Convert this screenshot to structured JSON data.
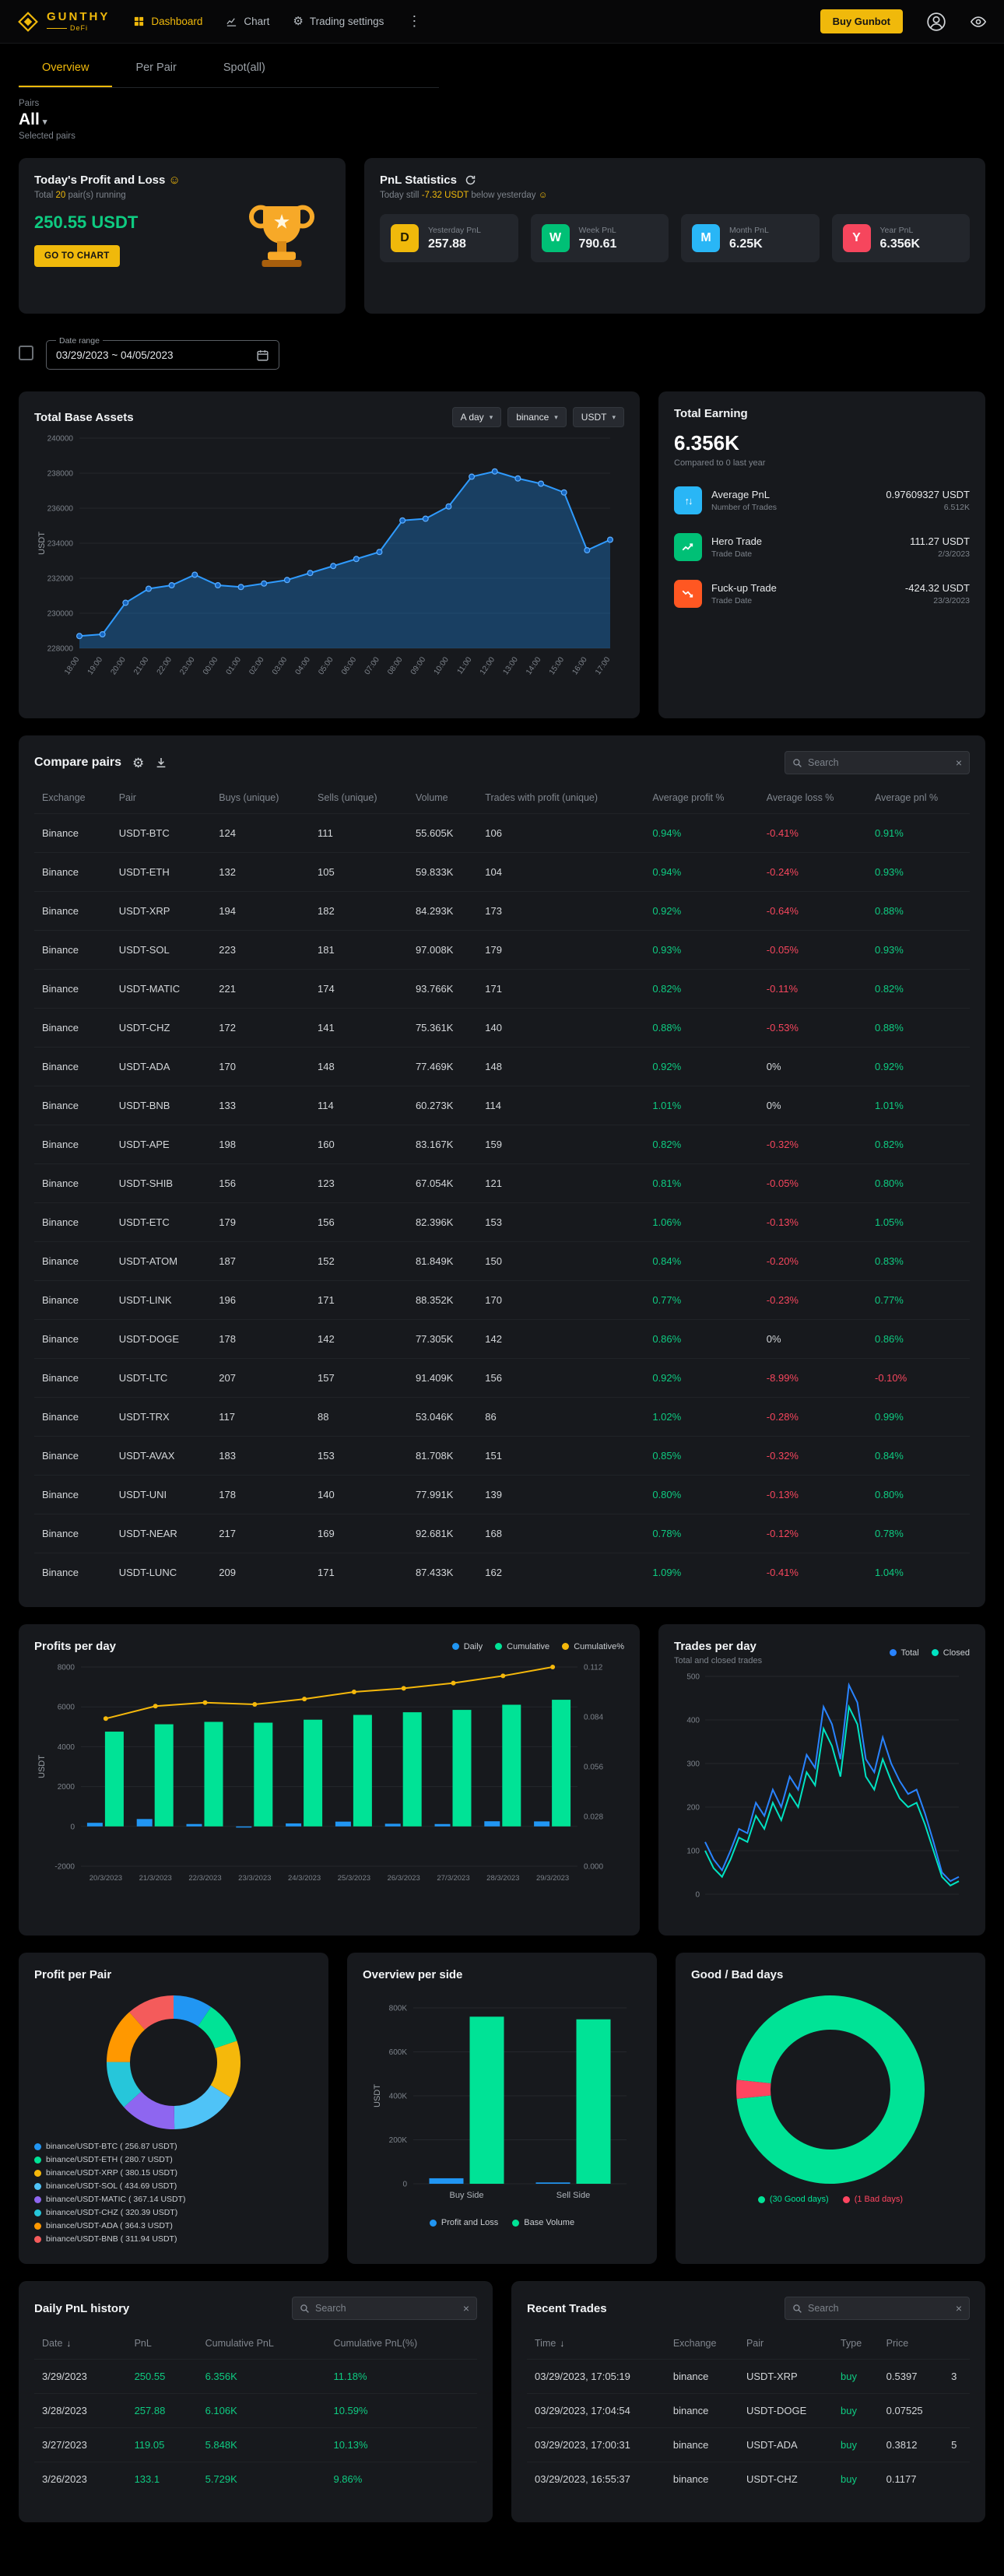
{
  "colors": {
    "accent_gold": "#f0b90b",
    "positive_green": "#0ecb81",
    "negative_red": "#f6465d",
    "chart_blue": "#2196f3"
  },
  "navbar": {
    "brand": "GUNTHY",
    "brand_sub": "DeFi",
    "items": [
      "Dashboard",
      "Chart",
      "Trading settings"
    ],
    "buy_button": "Buy Gunbot"
  },
  "tabs": [
    "Overview",
    "Per Pair",
    "Spot(all)"
  ],
  "pairs_filter": {
    "label": "Pairs",
    "value": "All",
    "sub": "Selected pairs"
  },
  "today_card": {
    "title": "Today's Profit and Loss",
    "title_emoji": "☺",
    "subtitle_prefix": "Total ",
    "subtitle_count": "20",
    "subtitle_suffix": " pair(s) running",
    "amount": "250.55 USDT",
    "button": "GO TO CHART"
  },
  "pnl_stats": {
    "title": "PnL Statistics",
    "subtitle_pre": "Today still ",
    "subtitle_value": "-7.32 USDT",
    "subtitle_post": " below yesterday",
    "subtitle_emoji": "☺",
    "stats": [
      {
        "letter": "D",
        "label": "Yesterday PnL",
        "value": "257.88",
        "color": "#f0b90b"
      },
      {
        "letter": "W",
        "label": "Week PnL",
        "value": "790.61",
        "color": "#00c076"
      },
      {
        "letter": "M",
        "label": "Month PnL",
        "value": "6.25K",
        "color": "#29b6f6"
      },
      {
        "letter": "Y",
        "label": "Year PnL",
        "value": "6.356K",
        "color": "#f6465d"
      }
    ]
  },
  "date_range": {
    "label": "Date range",
    "value": "03/29/2023 ~ 04/05/2023"
  },
  "base_assets": {
    "title": "Total Base Assets",
    "selects": [
      "A day",
      "binance",
      "USDT"
    ]
  },
  "total_earning": {
    "title": "Total Earning",
    "value": "6.356K",
    "compare": "Compared to 0 last year",
    "rows": [
      {
        "label": "Average PnL",
        "sub": "Number of Trades",
        "value": "0.97609327 USDT",
        "sub_value": "6.512K",
        "icon": "swap-icon",
        "color": "#29b6f6"
      },
      {
        "label": "Hero Trade",
        "sub": "Trade Date",
        "value": "111.27 USDT",
        "sub_value": "2/3/2023",
        "icon": "trend-up-icon",
        "color": "#00c076"
      },
      {
        "label": "Fuck-up Trade",
        "sub": "Trade Date",
        "value": "-424.32 USDT",
        "sub_value": "23/3/2023",
        "icon": "trend-down-icon",
        "color": "#ff5722"
      }
    ]
  },
  "compare_pairs": {
    "title": "Compare pairs",
    "search_placeholder": "Search",
    "headers": [
      "Exchange",
      "Pair",
      "Buys (unique)",
      "Sells (unique)",
      "Volume",
      "Trades with profit (unique)",
      "Average profit %",
      "Average loss %",
      "Average pnl %"
    ],
    "rows": [
      [
        "Binance",
        "USDT-BTC",
        "124",
        "111",
        "55.605K",
        "106",
        "0.94%",
        "-0.41%",
        "0.91%"
      ],
      [
        "Binance",
        "USDT-ETH",
        "132",
        "105",
        "59.833K",
        "104",
        "0.94%",
        "-0.24%",
        "0.93%"
      ],
      [
        "Binance",
        "USDT-XRP",
        "194",
        "182",
        "84.293K",
        "173",
        "0.92%",
        "-0.64%",
        "0.88%"
      ],
      [
        "Binance",
        "USDT-SOL",
        "223",
        "181",
        "97.008K",
        "179",
        "0.93%",
        "-0.05%",
        "0.93%"
      ],
      [
        "Binance",
        "USDT-MATIC",
        "221",
        "174",
        "93.766K",
        "171",
        "0.82%",
        "-0.11%",
        "0.82%"
      ],
      [
        "Binance",
        "USDT-CHZ",
        "172",
        "141",
        "75.361K",
        "140",
        "0.88%",
        "-0.53%",
        "0.88%"
      ],
      [
        "Binance",
        "USDT-ADA",
        "170",
        "148",
        "77.469K",
        "148",
        "0.92%",
        "0%",
        "0.92%"
      ],
      [
        "Binance",
        "USDT-BNB",
        "133",
        "114",
        "60.273K",
        "114",
        "1.01%",
        "0%",
        "1.01%"
      ],
      [
        "Binance",
        "USDT-APE",
        "198",
        "160",
        "83.167K",
        "159",
        "0.82%",
        "-0.32%",
        "0.82%"
      ],
      [
        "Binance",
        "USDT-SHIB",
        "156",
        "123",
        "67.054K",
        "121",
        "0.81%",
        "-0.05%",
        "0.80%"
      ],
      [
        "Binance",
        "USDT-ETC",
        "179",
        "156",
        "82.396K",
        "153",
        "1.06%",
        "-0.13%",
        "1.05%"
      ],
      [
        "Binance",
        "USDT-ATOM",
        "187",
        "152",
        "81.849K",
        "150",
        "0.84%",
        "-0.20%",
        "0.83%"
      ],
      [
        "Binance",
        "USDT-LINK",
        "196",
        "171",
        "88.352K",
        "170",
        "0.77%",
        "-0.23%",
        "0.77%"
      ],
      [
        "Binance",
        "USDT-DOGE",
        "178",
        "142",
        "77.305K",
        "142",
        "0.86%",
        "0%",
        "0.86%"
      ],
      [
        "Binance",
        "USDT-LTC",
        "207",
        "157",
        "91.409K",
        "156",
        "0.92%",
        "-8.99%",
        "-0.10%"
      ],
      [
        "Binance",
        "USDT-TRX",
        "117",
        "88",
        "53.046K",
        "86",
        "1.02%",
        "-0.28%",
        "0.99%"
      ],
      [
        "Binance",
        "USDT-AVAX",
        "183",
        "153",
        "81.708K",
        "151",
        "0.85%",
        "-0.32%",
        "0.84%"
      ],
      [
        "Binance",
        "USDT-UNI",
        "178",
        "140",
        "77.991K",
        "139",
        "0.80%",
        "-0.13%",
        "0.80%"
      ],
      [
        "Binance",
        "USDT-NEAR",
        "217",
        "169",
        "92.681K",
        "168",
        "0.78%",
        "-0.12%",
        "0.78%"
      ],
      [
        "Binance",
        "USDT-LUNC",
        "209",
        "171",
        "87.433K",
        "162",
        "1.09%",
        "-0.41%",
        "1.04%"
      ]
    ]
  },
  "daily_pnl": {
    "title": "Daily PnL history",
    "search_placeholder": "Search",
    "headers": [
      "Date",
      "PnL",
      "Cumulative PnL",
      "Cumulative PnL(%)"
    ],
    "rows": [
      [
        "3/29/2023",
        "250.55",
        "6.356K",
        "11.18%"
      ],
      [
        "3/28/2023",
        "257.88",
        "6.106K",
        "10.59%"
      ],
      [
        "3/27/2023",
        "119.05",
        "5.848K",
        "10.13%"
      ],
      [
        "3/26/2023",
        "133.1",
        "5.729K",
        "9.86%"
      ]
    ]
  },
  "recent_trades": {
    "title": "Recent Trades",
    "search_placeholder": "Search",
    "headers": [
      "Time",
      "Exchange",
      "Pair",
      "Type",
      "Price",
      ""
    ],
    "rows": [
      [
        "03/29/2023, 17:05:19",
        "binance",
        "USDT-XRP",
        "buy",
        "0.5397",
        "3"
      ],
      [
        "03/29/2023, 17:04:54",
        "binance",
        "USDT-DOGE",
        "buy",
        "0.07525",
        ""
      ],
      [
        "03/29/2023, 17:00:31",
        "binance",
        "USDT-ADA",
        "buy",
        "0.3812",
        "5"
      ],
      [
        "03/29/2023, 16:55:37",
        "binance",
        "USDT-CHZ",
        "buy",
        "0.1177",
        ""
      ]
    ]
  },
  "chart_data": [
    {
      "id": "total_base_assets",
      "type": "area",
      "title": "Total Base Assets",
      "ylabel": "USDT",
      "ylim": [
        228000,
        240000
      ],
      "yticks": [
        228000,
        230000,
        232000,
        234000,
        236000,
        238000,
        240000
      ],
      "x": [
        "18:00",
        "19:00",
        "20:00",
        "21:00",
        "22:00",
        "23:00",
        "00:00",
        "01:00",
        "02:00",
        "03:00",
        "04:00",
        "05:00",
        "06:00",
        "07:00",
        "08:00",
        "09:00",
        "10:00",
        "11:00",
        "12:00",
        "13:00",
        "14:00",
        "15:00",
        "16:00",
        "17:00"
      ],
      "values": [
        228700,
        228800,
        230600,
        231400,
        231600,
        232200,
        231600,
        231500,
        231700,
        231900,
        232300,
        232700,
        233100,
        233500,
        235300,
        235400,
        236100,
        237800,
        238100,
        237700,
        237400,
        236900,
        233600,
        234200
      ],
      "color": "#2f9bff"
    },
    {
      "id": "profits_per_day",
      "type": "bar-line",
      "title": "Profits per day",
      "ylabel": "USDT",
      "categories": [
        "20/3/2023",
        "21/3/2023",
        "22/3/2023",
        "23/3/2023",
        "24/3/2023",
        "25/3/2023",
        "26/3/2023",
        "27/3/2023",
        "28/3/2023",
        "29/3/2023"
      ],
      "ylim_left": [
        -2000,
        8000
      ],
      "yticks_left": [
        -2000,
        0,
        2000,
        4000,
        6000,
        8000
      ],
      "ylim_right": [
        0,
        0.112
      ],
      "yticks_right": [
        0,
        0.028,
        0.056,
        0.084,
        0.112
      ],
      "series": [
        {
          "name": "Daily",
          "type": "bar",
          "axis": "left",
          "color": "#2196f3",
          "values": [
            180,
            370,
            120,
            -40,
            150,
            240,
            133.1,
            119.05,
            257.88,
            250.55
          ]
        },
        {
          "name": "Cumulative",
          "type": "bar",
          "axis": "left",
          "color": "#00e396",
          "values": [
            4756,
            5126,
            5246,
            5206,
            5356,
            5596,
            5729,
            5848,
            6106,
            6356
          ]
        },
        {
          "name": "Cumulative%",
          "type": "line",
          "axis": "right",
          "color": "#f5b80b",
          "values": [
            0.083,
            0.09,
            0.092,
            0.091,
            0.094,
            0.098,
            0.1,
            0.103,
            0.107,
            0.112
          ]
        }
      ]
    },
    {
      "id": "trades_per_day",
      "type": "line",
      "title": "Trades per day",
      "subtitle": "Total and closed trades",
      "ylim": [
        0,
        500
      ],
      "yticks": [
        0,
        100,
        200,
        300,
        400,
        500
      ],
      "series": [
        {
          "name": "Total",
          "color": "#2983ff",
          "values": [
            120,
            80,
            55,
            100,
            150,
            140,
            210,
            180,
            240,
            200,
            270,
            240,
            320,
            290,
            430,
            390,
            310,
            480,
            440,
            310,
            280,
            360,
            300,
            260,
            230,
            240,
            185,
            120,
            50,
            30,
            40
          ]
        },
        {
          "name": "Closed",
          "color": "#00e3c2",
          "values": [
            100,
            60,
            40,
            80,
            130,
            120,
            180,
            150,
            210,
            170,
            230,
            200,
            280,
            250,
            380,
            340,
            270,
            430,
            390,
            270,
            240,
            310,
            260,
            220,
            200,
            210,
            160,
            100,
            40,
            20,
            30
          ]
        }
      ]
    },
    {
      "id": "profit_per_pair",
      "type": "donut",
      "title": "Profit per Pair",
      "labels": [
        "binance/USDT-BTC ( 256.87 USDT)",
        "binance/USDT-ETH ( 280.7 USDT)",
        "binance/USDT-XRP ( 380.15 USDT)",
        "binance/USDT-SOL ( 434.69 USDT)",
        "binance/USDT-MATIC ( 367.14 USDT)",
        "binance/USDT-CHZ ( 320.39 USDT)",
        "binance/USDT-ADA ( 364.3 USDT)",
        "binance/USDT-BNB ( 311.94 USDT)"
      ],
      "values": [
        256.87,
        280.7,
        380.15,
        434.69,
        367.14,
        320.39,
        364.3,
        311.94
      ],
      "colors": [
        "#2196f3",
        "#00e396",
        "#f5b80b",
        "#4fc3f7",
        "#8e66f0",
        "#26c6da",
        "#ff9800",
        "#f45b5b"
      ]
    },
    {
      "id": "overview_per_side",
      "type": "bar",
      "title": "Overview per side",
      "ylabel": "USDT",
      "categories": [
        "Buy Side",
        "Sell Side"
      ],
      "ylim": [
        0,
        800000
      ],
      "yticks": [
        0,
        200000,
        400000,
        600000,
        800000
      ],
      "ytick_labels": [
        "0",
        "200K",
        "400K",
        "600K",
        "800K"
      ],
      "series": [
        {
          "name": "Profit and Loss",
          "color": "#2196f3",
          "values": [
            25000,
            6000
          ]
        },
        {
          "name": "Base Volume",
          "color": "#00e396",
          "values": [
            760000,
            748000
          ]
        }
      ]
    },
    {
      "id": "good_bad_days",
      "type": "donut",
      "title": "Good / Bad days",
      "labels": [
        "(30 Good days)",
        "(1 Bad days)"
      ],
      "values": [
        30,
        1
      ],
      "colors": [
        "#00e396",
        "#ff4560"
      ],
      "start_angle": -174
    }
  ]
}
